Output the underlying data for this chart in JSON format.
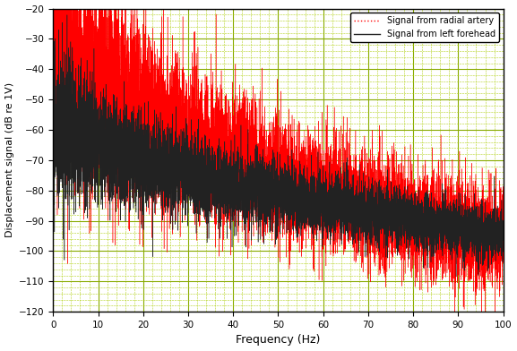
{
  "title": "",
  "xlabel": "Frequency (Hz)",
  "ylabel": "Displacement signal (dB re 1V)",
  "xlim": [
    0,
    100
  ],
  "ylim": [
    -120,
    -20
  ],
  "yticks": [
    -20,
    -30,
    -40,
    -50,
    -60,
    -70,
    -80,
    -90,
    -100,
    -110,
    -120
  ],
  "xticks": [
    0,
    10,
    20,
    30,
    40,
    50,
    60,
    70,
    80,
    90,
    100
  ],
  "legend": [
    "Signal from radial artery",
    "Signal from left forehead"
  ],
  "color_radial": "#FF0000",
  "color_forehead": "#222222",
  "bg_color": "#FFFFFF",
  "grid_major_color": "#88AA00",
  "grid_minor_color": "#AACC00",
  "seed": 42,
  "n_points": 8000
}
